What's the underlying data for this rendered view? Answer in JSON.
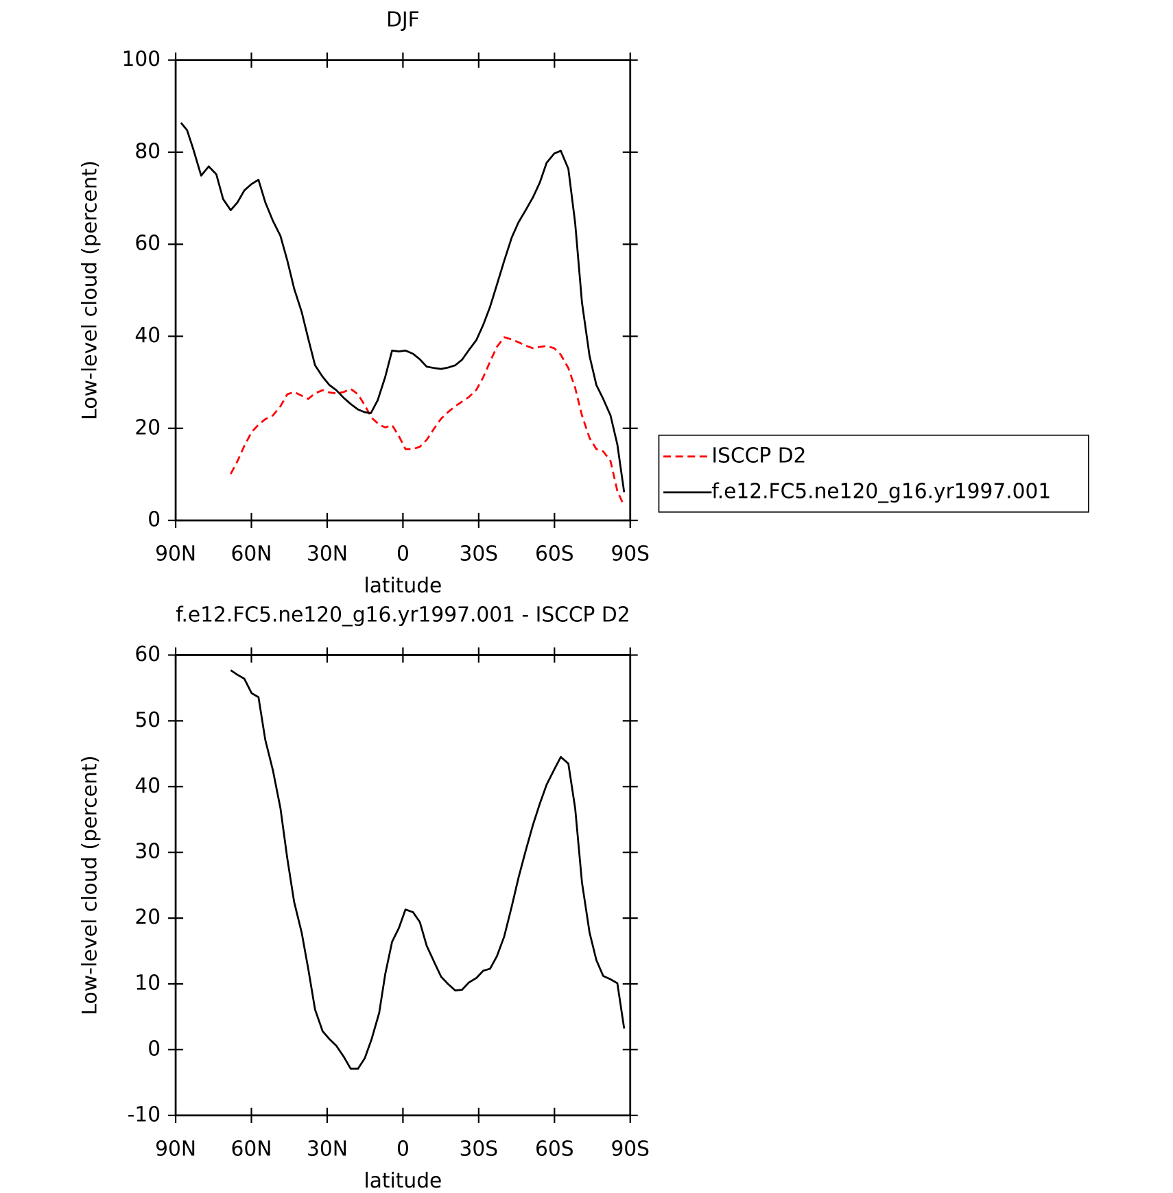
{
  "chart_data": [
    {
      "type": "line",
      "title": "DJF",
      "xlabel": "latitude",
      "ylabel": "Low-level cloud (percent)",
      "xlim": [
        90,
        -90
      ],
      "ylim": [
        0,
        100
      ],
      "xticks": [
        {
          "value": 90,
          "label": "90N"
        },
        {
          "value": 60,
          "label": "60N"
        },
        {
          "value": 30,
          "label": "30N"
        },
        0,
        {
          "value": -30,
          "label": "30S"
        },
        {
          "value": -60,
          "label": "60S"
        },
        {
          "value": -90,
          "label": "90S"
        }
      ],
      "yticks": [
        0,
        20,
        40,
        60,
        80,
        100
      ],
      "legend": "right",
      "series": [
        {
          "name": "ISCCP D2",
          "color": "#ff0000",
          "dashed": true,
          "x": [
            68.2,
            65.5,
            62.8,
            59.9,
            57.2,
            54.5,
            51.5,
            48.5,
            45.8,
            43.1,
            40.1,
            37.5,
            34.8,
            31.8,
            29.1,
            26.4,
            23.4,
            20.7,
            17.8,
            15.1,
            12.4,
            9.4,
            7.0,
            4.3,
            1.6,
            -1.0,
            -4.0,
            -6.7,
            -9.4,
            -12.4,
            -15.1,
            -17.8,
            -20.7,
            -23.4,
            -26.1,
            -29.1,
            -31.8,
            -34.5,
            -37.2,
            -40.1,
            -43.1,
            -45.8,
            -48.5,
            -51.5,
            -54.2,
            -56.9,
            -59.9,
            -62.5,
            -65.5,
            -68.2,
            -70.9,
            -73.9,
            -76.6,
            -79.3,
            -82.2,
            -84.9,
            -87.6
          ],
          "values": [
            10.1,
            12.9,
            16.2,
            19.2,
            20.8,
            22.0,
            22.8,
            24.8,
            27.4,
            27.9,
            27.1,
            26.4,
            27.6,
            28.3,
            27.8,
            27.6,
            27.9,
            28.6,
            27.4,
            25.0,
            22.3,
            20.8,
            20.2,
            20.7,
            18.3,
            15.5,
            15.5,
            16.0,
            17.5,
            20.0,
            22.1,
            23.5,
            24.8,
            25.8,
            26.8,
            28.4,
            31.1,
            34.5,
            37.7,
            39.8,
            39.3,
            38.7,
            38.0,
            37.4,
            37.7,
            37.9,
            37.4,
            36.0,
            33.1,
            28.8,
            22.8,
            17.9,
            15.5,
            15.0,
            12.9,
            6.4,
            3.1
          ]
        },
        {
          "name": "f.e12.FC5.ne120_g16.yr1997.001",
          "color": "#000000",
          "dashed": false,
          "x": [
            87.9,
            85.5,
            83.1,
            79.9,
            76.9,
            73.9,
            71.2,
            68.2,
            65.5,
            62.8,
            59.9,
            57.2,
            54.5,
            51.5,
            48.5,
            45.8,
            43.1,
            40.1,
            37.5,
            34.8,
            31.8,
            29.1,
            26.4,
            23.4,
            20.7,
            17.8,
            15.1,
            12.7,
            10.0,
            7.0,
            4.3,
            1.6,
            -1.0,
            -4.0,
            -6.7,
            -9.4,
            -12.4,
            -15.1,
            -17.8,
            -20.7,
            -23.4,
            -26.1,
            -29.1,
            -31.8,
            -34.5,
            -37.2,
            -40.1,
            -43.1,
            -45.8,
            -48.5,
            -51.5,
            -54.2,
            -56.9,
            -59.9,
            -62.5,
            -65.5,
            -68.2,
            -70.9,
            -73.9,
            -76.6,
            -79.3,
            -82.2,
            -84.9,
            -87.6
          ],
          "values": [
            86.4,
            84.8,
            80.8,
            74.9,
            76.9,
            75.2,
            69.8,
            67.4,
            69.1,
            71.7,
            73.1,
            74.0,
            69.1,
            65.1,
            61.8,
            56.5,
            50.4,
            45.3,
            39.5,
            33.7,
            31.2,
            29.4,
            28.3,
            26.6,
            25.3,
            24.1,
            23.5,
            23.3,
            26.1,
            31.2,
            36.9,
            36.7,
            36.9,
            36.2,
            35.0,
            33.4,
            33.1,
            32.9,
            33.2,
            33.7,
            34.9,
            37.0,
            39.2,
            42.5,
            46.4,
            51.2,
            56.4,
            61.5,
            64.8,
            67.3,
            70.2,
            73.4,
            77.7,
            79.7,
            80.3,
            76.4,
            64.6,
            47.3,
            35.7,
            29.4,
            26.4,
            22.8,
            16.5,
            6.1
          ]
        }
      ]
    },
    {
      "type": "line",
      "title": "f.e12.FC5.ne120_g16.yr1997.001 - ISCCP D2",
      "xlabel": "latitude",
      "ylabel": "Low-level cloud (percent)",
      "xlim": [
        90,
        -90
      ],
      "ylim": [
        -10,
        60
      ],
      "xticks": [
        {
          "value": 90,
          "label": "90N"
        },
        {
          "value": 60,
          "label": "60N"
        },
        {
          "value": 30,
          "label": "30N"
        },
        0,
        {
          "value": -30,
          "label": "30S"
        },
        {
          "value": -60,
          "label": "60S"
        },
        {
          "value": -90,
          "label": "90S"
        }
      ],
      "yticks": [
        -10,
        0,
        10,
        20,
        30,
        40,
        50,
        60
      ],
      "series": [
        {
          "color": "#000000",
          "dashed": false,
          "x": [
            68.2,
            65.5,
            62.8,
            59.9,
            57.2,
            54.5,
            51.5,
            48.5,
            45.8,
            43.1,
            40.1,
            37.5,
            34.8,
            31.8,
            29.1,
            26.4,
            23.4,
            20.7,
            17.8,
            15.1,
            12.4,
            9.4,
            7.0,
            4.3,
            1.6,
            -1.0,
            -4.0,
            -6.7,
            -9.4,
            -12.4,
            -15.1,
            -17.8,
            -20.7,
            -23.4,
            -26.1,
            -29.1,
            -31.8,
            -34.5,
            -37.2,
            -40.1,
            -43.1,
            -45.8,
            -48.5,
            -51.5,
            -54.2,
            -56.9,
            -59.9,
            -62.5,
            -65.5,
            -68.2,
            -70.9,
            -73.9,
            -76.6,
            -79.3,
            -82.2,
            -84.9,
            -87.6
          ],
          "values": [
            57.7,
            57.0,
            56.4,
            54.2,
            53.6,
            47.1,
            42.5,
            36.7,
            29.1,
            22.5,
            17.8,
            12.3,
            6.1,
            2.8,
            1.6,
            0.6,
            -1.1,
            -2.9,
            -2.9,
            -1.3,
            1.6,
            5.6,
            11.5,
            16.4,
            18.5,
            21.3,
            20.9,
            19.4,
            15.8,
            13.3,
            11.1,
            10.0,
            9.0,
            9.1,
            10.2,
            10.9,
            12.0,
            12.3,
            14.2,
            17.2,
            21.8,
            26.2,
            30.1,
            34.2,
            37.4,
            40.3,
            42.6,
            44.5,
            43.5,
            36.7,
            25.4,
            17.8,
            13.6,
            11.2,
            10.7,
            10.1,
            3.2
          ]
        }
      ]
    }
  ]
}
